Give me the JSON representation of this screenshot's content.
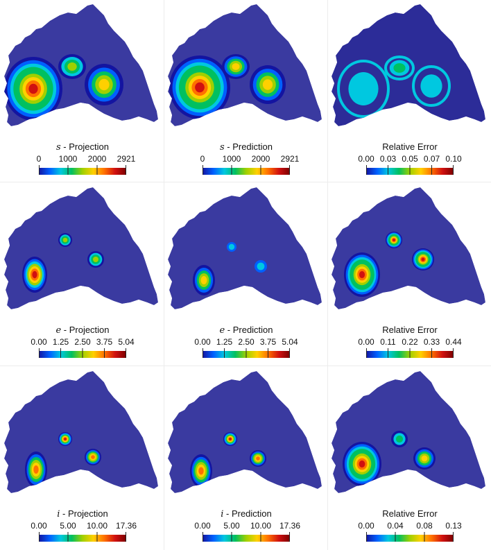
{
  "panels": [
    {
      "variable": "s",
      "label": " - Projection",
      "ticks": [
        "0",
        "1000",
        "2000",
        "2921"
      ],
      "field": "s_proj"
    },
    {
      "variable": "s",
      "label": " - Prediction",
      "ticks": [
        "0",
        "1000",
        "2000",
        "2921"
      ],
      "field": "s_pred"
    },
    {
      "variable": "",
      "label": "Relative Error",
      "ticks": [
        "0.00",
        "0.03",
        "0.05",
        "0.07",
        "0.10"
      ],
      "field": "s_err"
    },
    {
      "variable": "e",
      "label": " - Projection",
      "ticks": [
        "0.00",
        "1.25",
        "2.50",
        "3.75",
        "5.04"
      ],
      "field": "e_proj"
    },
    {
      "variable": "e",
      "label": " - Prediction",
      "ticks": [
        "0.00",
        "1.25",
        "2.50",
        "3.75",
        "5.04"
      ],
      "field": "e_pred"
    },
    {
      "variable": "",
      "label": "Relative Error",
      "ticks": [
        "0.00",
        "0.11",
        "0.22",
        "0.33",
        "0.44"
      ],
      "field": "e_err"
    },
    {
      "variable": "i",
      "label": " - Projection",
      "ticks": [
        "0.00",
        "5.00",
        "10.00",
        "17.36"
      ],
      "field": "i_proj"
    },
    {
      "variable": "i",
      "label": " - Prediction",
      "ticks": [
        "0.00",
        "5.00",
        "10.00",
        "17.36"
      ],
      "field": "i_pred"
    },
    {
      "variable": "",
      "label": "Relative Error",
      "ticks": [
        "0.00",
        "0.04",
        "0.08",
        "0.13"
      ],
      "field": "i_err"
    }
  ],
  "colormap": {
    "name": "jet-like",
    "stops": [
      "#3b4cc0",
      "#1414a0",
      "#0060ff",
      "#00c8e0",
      "#00c060",
      "#a0d000",
      "#ffd000",
      "#ff7000",
      "#d01010",
      "#7a0000"
    ],
    "background_field": "#3a3aa0"
  }
}
